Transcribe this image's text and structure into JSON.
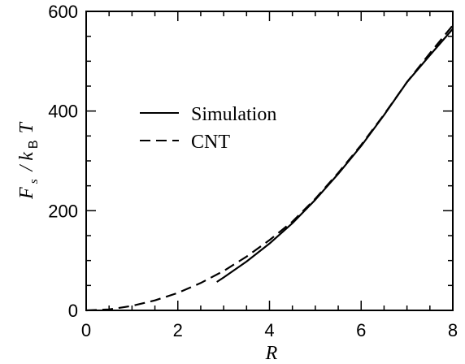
{
  "chart_data": {
    "type": "line",
    "title": "",
    "xlabel": "R",
    "ylabel": {
      "F": "F",
      "s": "s",
      "slash_k": "/ k",
      "B": "B",
      "T": "T"
    },
    "xlim": [
      0,
      8
    ],
    "ylim": [
      0,
      600
    ],
    "x_ticks": [
      "0",
      "2",
      "4",
      "6",
      "8"
    ],
    "y_ticks": [
      "0",
      "200",
      "400",
      "600"
    ],
    "legend_position": "upper-left",
    "series": [
      {
        "name": "Simulation",
        "style": "solid",
        "color": "#000000",
        "x": [
          2.85,
          3.0,
          3.5,
          4.0,
          4.5,
          5.0,
          5.5,
          6.0,
          6.5,
          7.0,
          7.5,
          8.0
        ],
        "y": [
          57,
          66,
          98,
          134,
          175,
          222,
          274,
          330,
          392,
          458,
          512,
          565
        ]
      },
      {
        "name": "CNT",
        "style": "dashed",
        "color": "#000000",
        "x": [
          0.0,
          0.5,
          1.0,
          1.5,
          2.0,
          2.5,
          3.0,
          3.5,
          4.0,
          4.5,
          5.0,
          5.5,
          6.0,
          6.5,
          7.0,
          7.5,
          8.0
        ],
        "y": [
          0,
          2,
          9,
          20,
          35,
          55,
          79,
          108,
          141,
          178,
          224,
          276,
          332,
          393,
          458,
          516,
          572
        ]
      }
    ]
  }
}
